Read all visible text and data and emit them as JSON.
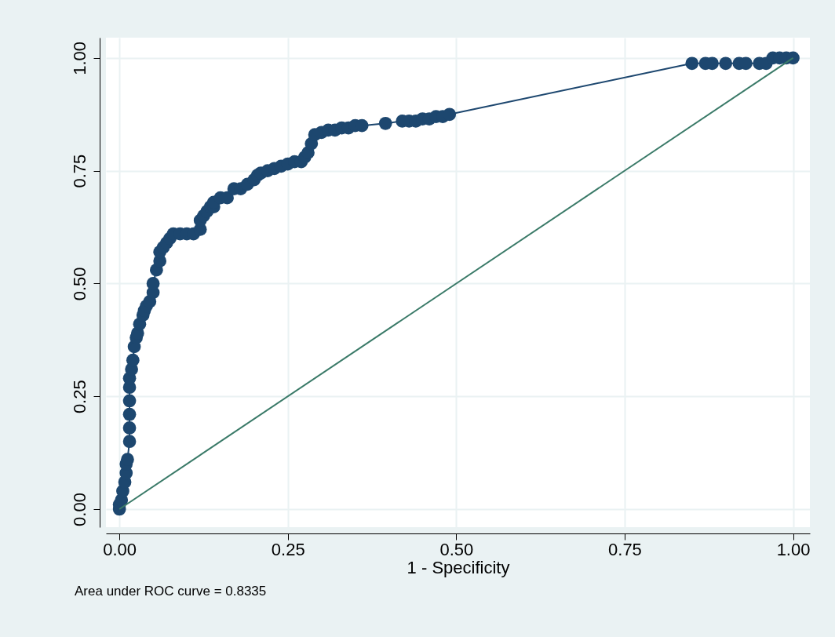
{
  "chart_data": {
    "type": "line",
    "xlabel": "1 - Specificity",
    "annotations": [
      "Area under ROC curve = 0.8335"
    ],
    "xlim": [
      -0.02,
      1.025
    ],
    "ylim": [
      -0.04,
      1.045
    ],
    "xticks": [
      {
        "value": 0,
        "label": "0.00"
      },
      {
        "value": 0.25,
        "label": "0.25"
      },
      {
        "value": 0.5,
        "label": "0.50"
      },
      {
        "value": 0.75,
        "label": "0.75"
      },
      {
        "value": 1,
        "label": "1.00"
      }
    ],
    "yticks": [
      {
        "value": 0,
        "label": "0.00"
      },
      {
        "value": 0.25,
        "label": "0.25"
      },
      {
        "value": 0.5,
        "label": "0.50"
      },
      {
        "value": 0.75,
        "label": "0.75"
      },
      {
        "value": 1,
        "label": "1.00"
      }
    ],
    "grid": true,
    "series": [
      {
        "color": "#1d476f",
        "marker": "circle",
        "x": [
          0,
          0,
          0.003,
          0.005,
          0.008,
          0.01,
          0.01,
          0.012,
          0.015,
          0.015,
          0.015,
          0.015,
          0.015,
          0.015,
          0.018,
          0.02,
          0.022,
          0.025,
          0.027,
          0.03,
          0.035,
          0.037,
          0.04,
          0.045,
          0.05,
          0.05,
          0.055,
          0.06,
          0.06,
          0.065,
          0.07,
          0.075,
          0.08,
          0.09,
          0.1,
          0.11,
          0.12,
          0.12,
          0.125,
          0.13,
          0.135,
          0.14,
          0.14,
          0.15,
          0.16,
          0.17,
          0.18,
          0.19,
          0.2,
          0.205,
          0.21,
          0.22,
          0.23,
          0.24,
          0.25,
          0.26,
          0.27,
          0.275,
          0.28,
          0.285,
          0.29,
          0.3,
          0.31,
          0.32,
          0.33,
          0.34,
          0.35,
          0.36,
          0.395,
          0.42,
          0.43,
          0.44,
          0.45,
          0.46,
          0.47,
          0.48,
          0.49,
          0.85,
          0.87,
          0.88,
          0.9,
          0.92,
          0.93,
          0.95,
          0.96,
          0.97,
          0.98,
          0.99,
          1
        ],
        "values": [
          0,
          0.01,
          0.02,
          0.04,
          0.06,
          0.08,
          0.1,
          0.11,
          0.15,
          0.18,
          0.21,
          0.24,
          0.27,
          0.29,
          0.31,
          0.33,
          0.36,
          0.38,
          0.39,
          0.41,
          0.43,
          0.44,
          0.45,
          0.46,
          0.48,
          0.5,
          0.53,
          0.55,
          0.57,
          0.58,
          0.59,
          0.6,
          0.61,
          0.61,
          0.61,
          0.61,
          0.62,
          0.64,
          0.65,
          0.66,
          0.67,
          0.67,
          0.68,
          0.69,
          0.69,
          0.71,
          0.71,
          0.72,
          0.73,
          0.74,
          0.745,
          0.75,
          0.755,
          0.76,
          0.765,
          0.77,
          0.77,
          0.78,
          0.79,
          0.81,
          0.83,
          0.835,
          0.84,
          0.84,
          0.845,
          0.845,
          0.85,
          0.85,
          0.855,
          0.86,
          0.86,
          0.86,
          0.865,
          0.865,
          0.87,
          0.87,
          0.875,
          0.988,
          0.988,
          0.988,
          0.988,
          0.988,
          0.988,
          0.988,
          0.988,
          1,
          1,
          1,
          1
        ]
      },
      {
        "color": "#3a7a68",
        "marker": "none",
        "x": [
          0,
          1
        ],
        "values": [
          0,
          1
        ]
      }
    ]
  }
}
